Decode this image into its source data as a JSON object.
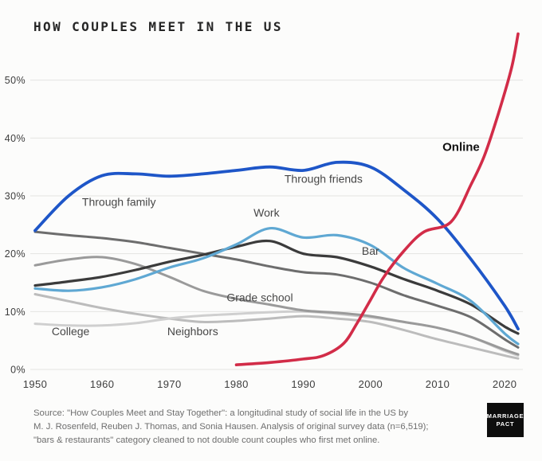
{
  "title": "HOW COUPLES MEET IN THE US",
  "source": {
    "lines": [
      "Source: \"How Couples Meet and Stay Together\": a longitudinal study of social life in the US by",
      "M. J. Rosenfeld, Reuben J. Thomas, and Sonia Hausen. Analysis of original survey data (n=6,519);",
      "\"bars & restaurants\" category cleaned to not double count couples who first met online."
    ]
  },
  "logo": {
    "line1": "MARRIAGE",
    "line2": "PACT"
  },
  "chart_data": {
    "type": "line",
    "title": "HOW COUPLES MEET IN THE US",
    "xlim": [
      1950,
      2022
    ],
    "ylim": [
      0,
      60
    ],
    "grid": true,
    "legend": "inline-labels",
    "grid_color": "#e4e4e2",
    "tick_color": "#3d3d3d",
    "xticks": [
      {
        "v": 1950,
        "label": "1950"
      },
      {
        "v": 1960,
        "label": "1960"
      },
      {
        "v": 1970,
        "label": "1970"
      },
      {
        "v": 1980,
        "label": "1980"
      },
      {
        "v": 1990,
        "label": "1990"
      },
      {
        "v": 2000,
        "label": "2000"
      },
      {
        "v": 2010,
        "label": "2010"
      },
      {
        "v": 2020,
        "label": "2020"
      }
    ],
    "yticks": [
      {
        "v": 0,
        "label": "0%"
      },
      {
        "v": 10,
        "label": "10%"
      },
      {
        "v": 20,
        "label": "20%"
      },
      {
        "v": 30,
        "label": "30%"
      },
      {
        "v": 40,
        "label": "40%"
      },
      {
        "v": 50,
        "label": "50%"
      }
    ],
    "series": [
      {
        "id": "neighbors",
        "name": "Neighbors",
        "color": "#bcbcbc",
        "width": 3,
        "x": [
          1950,
          1955,
          1960,
          1965,
          1970,
          1975,
          1980,
          1985,
          1990,
          1995,
          2000,
          2005,
          2010,
          2015,
          2020,
          2022
        ],
        "values": [
          13,
          11.8,
          10.6,
          9.6,
          8.8,
          8.2,
          8.4,
          8.8,
          9.2,
          8.8,
          8.2,
          6.8,
          5.2,
          3.8,
          2.4,
          1.9
        ],
        "label": {
          "text": "Neighbors",
          "x": 1973.5,
          "y": 5.9,
          "bold": false,
          "color": "#474747",
          "size": 14
        }
      },
      {
        "id": "college",
        "name": "College",
        "color": "#cfcfcf",
        "width": 3,
        "x": [
          1950,
          1955,
          1960,
          1965,
          1970,
          1975,
          1980,
          1985,
          1990,
          1995,
          2000,
          2005,
          2010,
          2015,
          2020,
          2022
        ],
        "values": [
          7.9,
          7.6,
          7.6,
          8,
          8.8,
          9.3,
          9.6,
          9.9,
          10,
          9.6,
          9,
          8.2,
          7.2,
          5.6,
          3.2,
          2.4
        ],
        "label": {
          "text": "College",
          "x": 1955.3,
          "y": 5.9,
          "bold": false,
          "color": "#474747",
          "size": 14
        }
      },
      {
        "id": "grade-school",
        "name": "Grade school",
        "color": "#9a9a9a",
        "width": 3,
        "x": [
          1950,
          1955,
          1960,
          1965,
          1970,
          1975,
          1980,
          1985,
          1990,
          1995,
          2000,
          2005,
          2010,
          2015,
          2020,
          2022
        ],
        "values": [
          18,
          19,
          19.4,
          18.2,
          16,
          13.6,
          12.2,
          11.2,
          10.2,
          9.8,
          9.2,
          8.2,
          7.2,
          5.6,
          3.4,
          2.6
        ],
        "label": {
          "text": "Grade school",
          "x": 1983.5,
          "y": 11.8,
          "bold": false,
          "color": "#474747",
          "size": 14
        }
      },
      {
        "id": "family",
        "name": "Through family",
        "color": "#6d6d6d",
        "width": 3,
        "x": [
          1950,
          1955,
          1960,
          1965,
          1970,
          1975,
          1980,
          1985,
          1990,
          1995,
          2000,
          2005,
          2010,
          2015,
          2020,
          2022
        ],
        "values": [
          23.8,
          23.2,
          22.7,
          22,
          21,
          20,
          19,
          17.8,
          16.8,
          16.4,
          15,
          12.8,
          11,
          9,
          5.2,
          3.8
        ],
        "label": {
          "text": "Through family",
          "x": 1962.5,
          "y": 28.3,
          "bold": false,
          "color": "#474747",
          "size": 14
        }
      },
      {
        "id": "bar",
        "name": "Bar",
        "color": "#3b3b3b",
        "width": 3.2,
        "x": [
          1950,
          1955,
          1960,
          1965,
          1970,
          1975,
          1980,
          1985,
          1990,
          1995,
          2000,
          2005,
          2010,
          2015,
          2020,
          2022
        ],
        "values": [
          14.5,
          15.2,
          16,
          17.2,
          18.6,
          19.8,
          21.2,
          22.2,
          20,
          19.4,
          17.8,
          15.6,
          13.6,
          11.2,
          7.4,
          6.2
        ],
        "label": {
          "text": "Bar",
          "x": 2000,
          "y": 19.8,
          "bold": false,
          "color": "#474747",
          "size": 14
        }
      },
      {
        "id": "work",
        "name": "Work",
        "color": "#5fa8d3",
        "width": 3.2,
        "x": [
          1950,
          1955,
          1960,
          1965,
          1970,
          1975,
          1980,
          1985,
          1990,
          1995,
          2000,
          2005,
          2010,
          2015,
          2020,
          2022
        ],
        "values": [
          14,
          13.6,
          14.2,
          15.6,
          17.6,
          19.2,
          21.6,
          24.4,
          22.8,
          23.2,
          21.5,
          17.5,
          14.8,
          11.8,
          6.2,
          4.4
        ],
        "label": {
          "text": "Work",
          "x": 1984.5,
          "y": 26.4,
          "bold": false,
          "color": "#474747",
          "size": 14
        }
      },
      {
        "id": "friends",
        "name": "Through friends",
        "color": "#1e56c8",
        "width": 3.8,
        "x": [
          1950,
          1955,
          1960,
          1965,
          1970,
          1975,
          1980,
          1985,
          1990,
          1995,
          2000,
          2005,
          2010,
          2015,
          2020,
          2022
        ],
        "values": [
          24,
          30,
          33.5,
          33.8,
          33.4,
          33.8,
          34.4,
          35,
          34.4,
          35.8,
          35,
          31,
          26,
          19,
          11,
          7
        ],
        "label": {
          "text": "Through friends",
          "x": 1993,
          "y": 32.3,
          "bold": false,
          "color": "#474747",
          "size": 14
        }
      },
      {
        "id": "online",
        "name": "Online",
        "color": "#d22c48",
        "width": 3.6,
        "x": [
          1980,
          1985,
          1990,
          1993,
          1996,
          1998,
          2000,
          2002,
          2005,
          2008,
          2012,
          2015,
          2017,
          2019,
          2021,
          2022
        ],
        "values": [
          0.8,
          1.2,
          1.8,
          2.4,
          4.5,
          8,
          12,
          16,
          20.5,
          23.8,
          25.5,
          32,
          37,
          44,
          52,
          58
        ],
        "label": {
          "text": "Online",
          "x": 2013.5,
          "y": 37.8,
          "bold": true,
          "color": "#111111",
          "size": 15
        }
      }
    ]
  }
}
